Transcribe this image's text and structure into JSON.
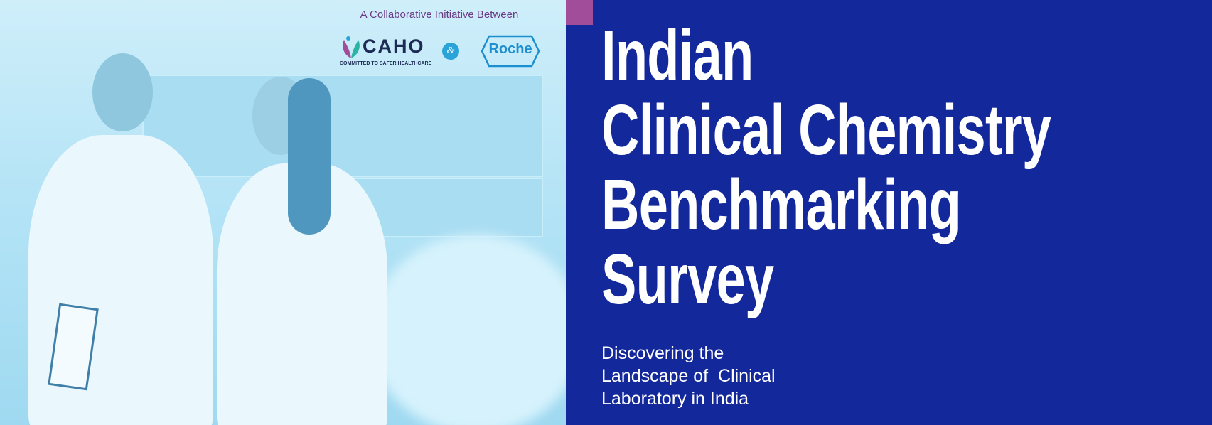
{
  "header": {
    "initiative": "A Collaborative Initiative Between"
  },
  "logos": {
    "caho": {
      "name": "CAHO",
      "tagline": "COMMITTED TO SAFER HEALTHCARE"
    },
    "ampersand": "&",
    "roche": "Roche"
  },
  "title": {
    "lines": [
      "Indian",
      "Clinical Chemistry",
      "Benchmarking",
      "Survey"
    ]
  },
  "subtitle": {
    "lines": [
      "Discovering the",
      "Landscape of  Clinical",
      "Laboratory in India"
    ]
  }
}
